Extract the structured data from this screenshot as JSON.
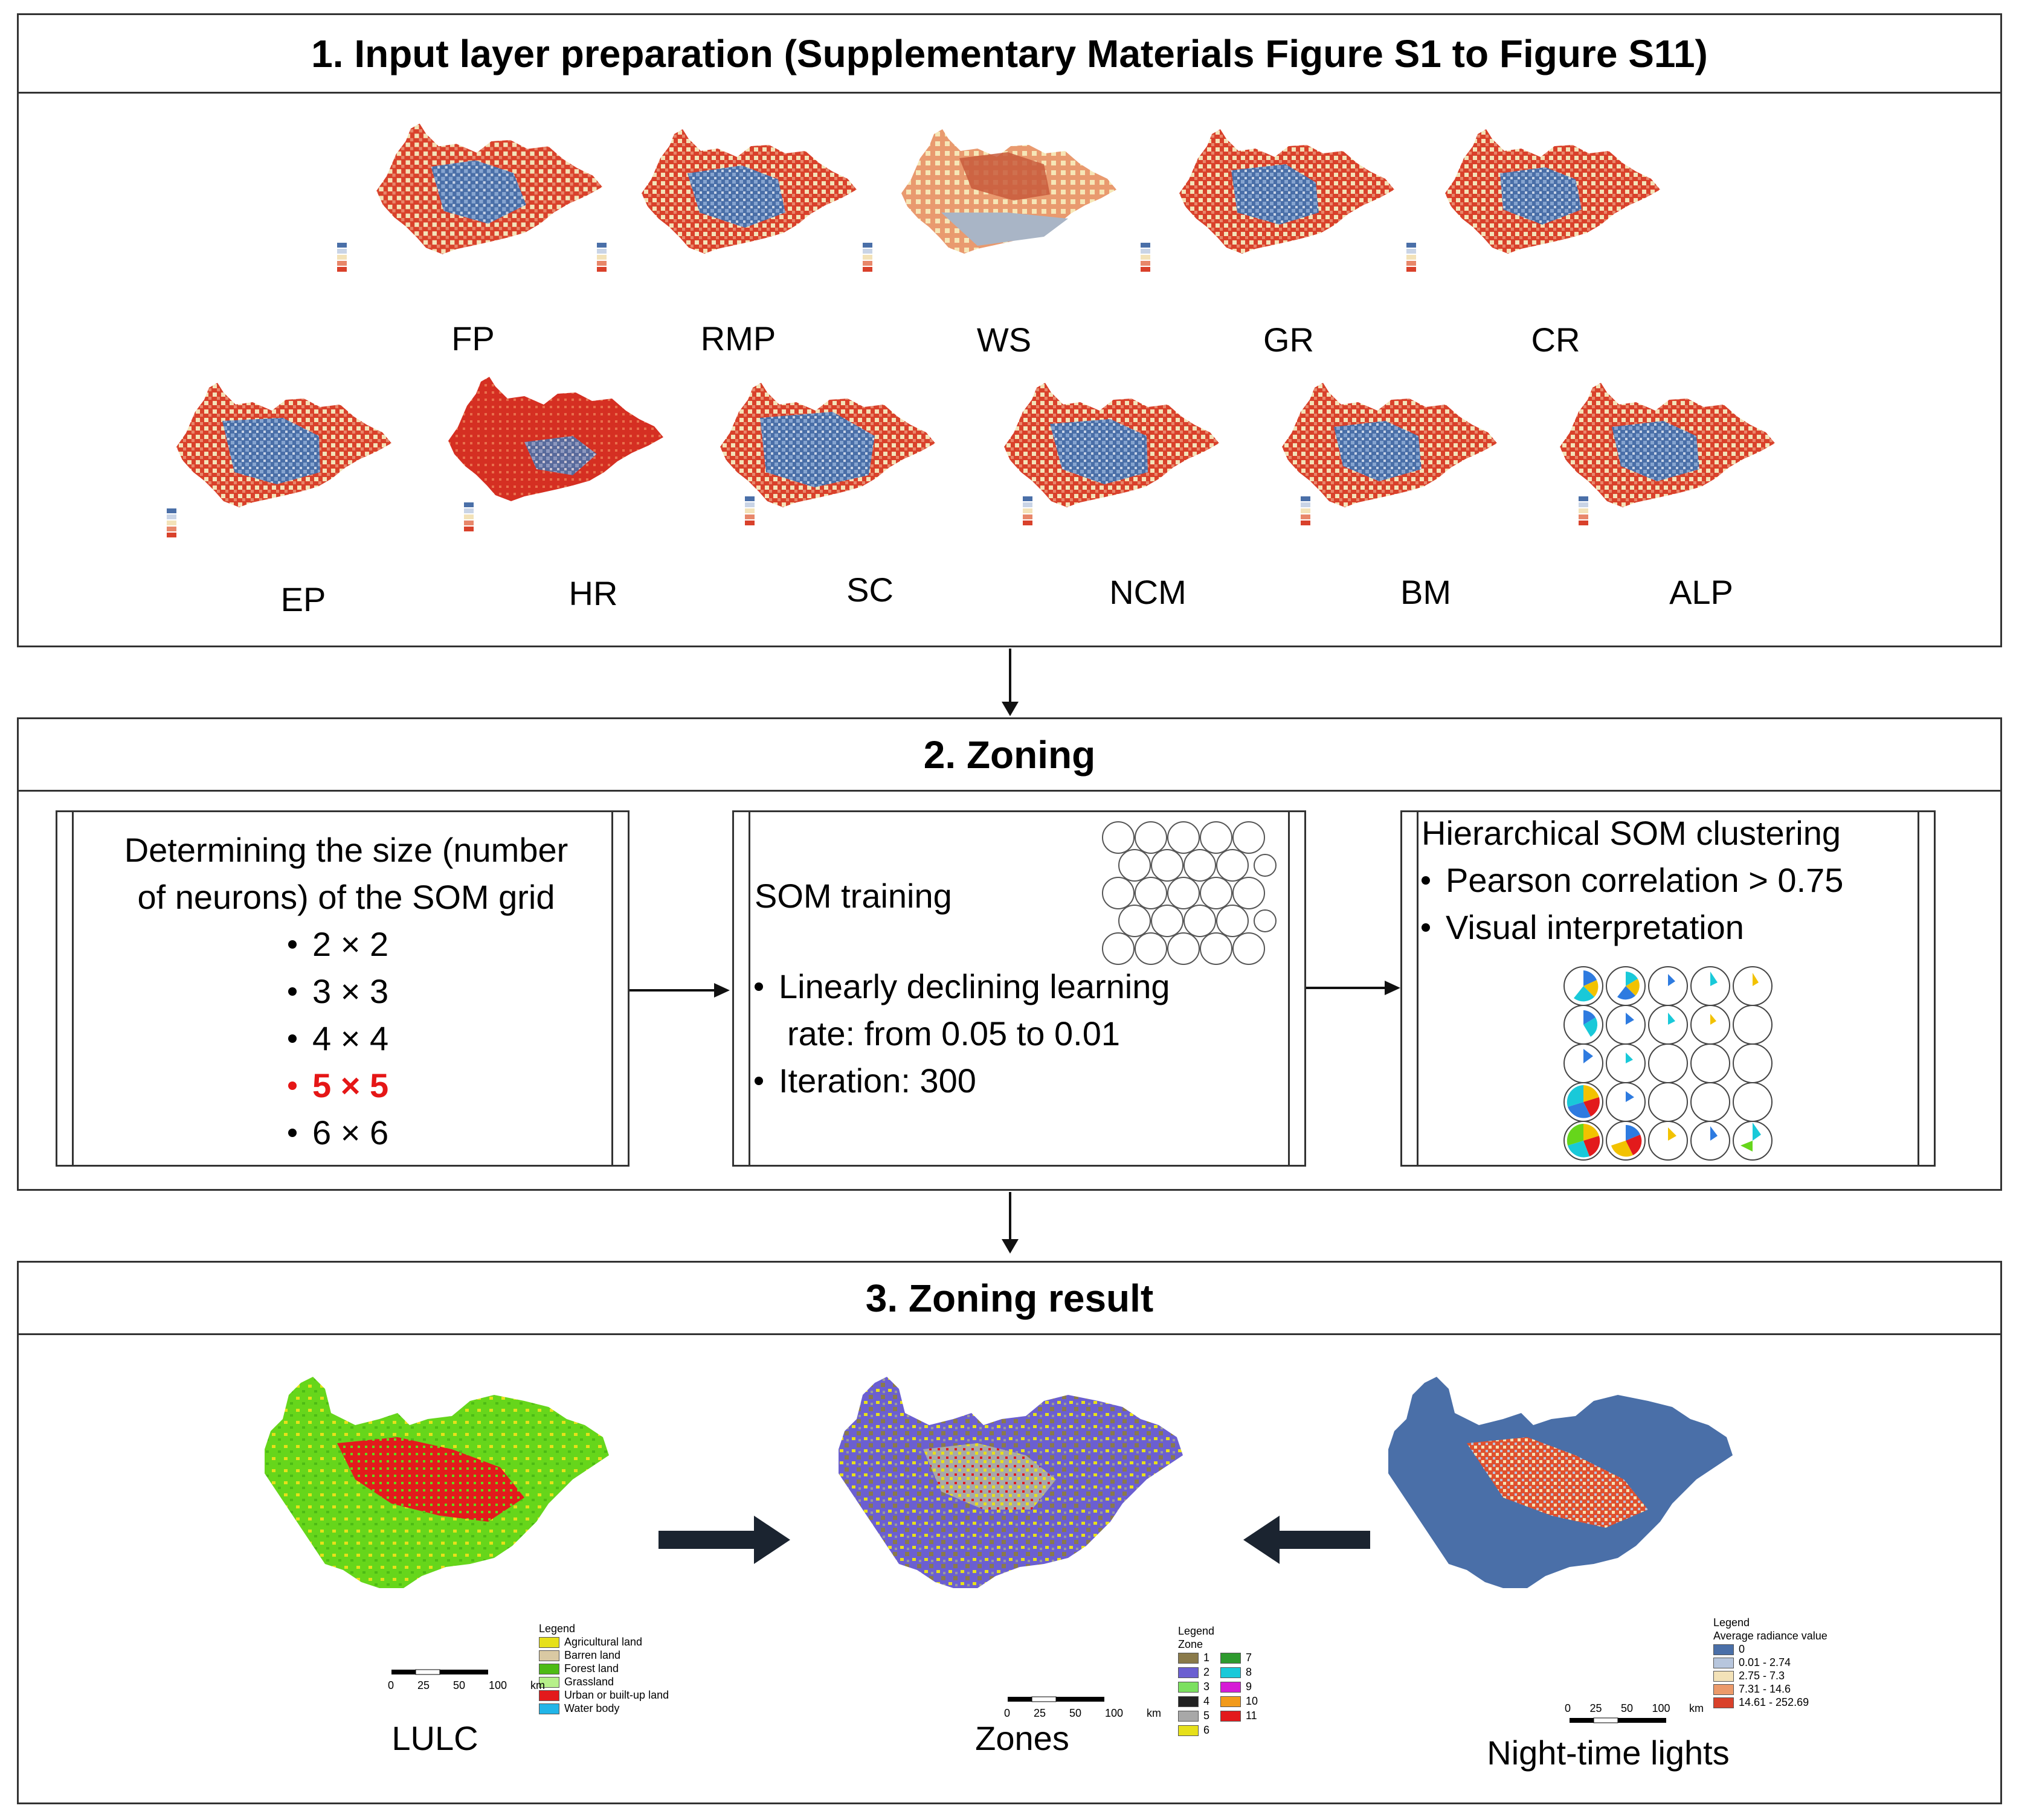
{
  "section1": {
    "title": "1. Input layer preparation (Supplementary Materials Figure S1 to Figure S11)",
    "maps": [
      "FP",
      "RMP",
      "WS",
      "GR",
      "CR",
      "EP",
      "HR",
      "SC",
      "NCM",
      "BM",
      "ALP"
    ]
  },
  "section2": {
    "title": "2. Zoning",
    "grid_panel": {
      "line1": "Determining the size (number",
      "line2": "of neurons) of the SOM grid",
      "options": [
        "2 × 2",
        "3 × 3",
        "4 × 4",
        "5 × 5",
        "6 × 6"
      ],
      "selected": "5 × 5"
    },
    "training_panel": {
      "title": "SOM training",
      "bullet1_line1": "Linearly declining learning",
      "bullet1_line2": "rate: from 0.05 to 0.01",
      "bullet2": "Iteration: 300"
    },
    "cluster_panel": {
      "title": "Hierarchical SOM clustering",
      "bullet1": "Pearson correlation > 0.75",
      "bullet2": "Visual interpretation"
    }
  },
  "section3": {
    "title": "3. Zoning result",
    "maps": [
      "LULC",
      "Zones",
      "Night-time lights"
    ],
    "lulc_legend": {
      "title": "Legend",
      "items": [
        "Agricultural land",
        "Barren land",
        "Forest land",
        "Grassland",
        "Urban or built-up land",
        "Water body"
      ]
    },
    "zones_legend": {
      "title": "Legend",
      "zone_label": "Zone",
      "items": [
        "1",
        "2",
        "3",
        "4",
        "5",
        "6",
        "7",
        "8",
        "9",
        "10",
        "11"
      ]
    },
    "ntl_legend": {
      "title": "Legend",
      "subtitle": "Average radiance value",
      "items": [
        "0",
        "0.01 - 2.74",
        "2.75 - 7.3",
        "7.31 - 14.6",
        "14.61 - 252.69"
      ]
    },
    "scale": {
      "ticks": [
        "0",
        "25",
        "50",
        "100"
      ],
      "unit": "km"
    }
  },
  "colors": {
    "map_blue": "#4a6fa8",
    "map_red": "#d9412b",
    "map_cream": "#f3e2b8",
    "lulc_green": "#66d61b",
    "lulc_red": "#e31a1c",
    "zones_purple": "#6b5fd1",
    "highlight": "#e51616"
  }
}
